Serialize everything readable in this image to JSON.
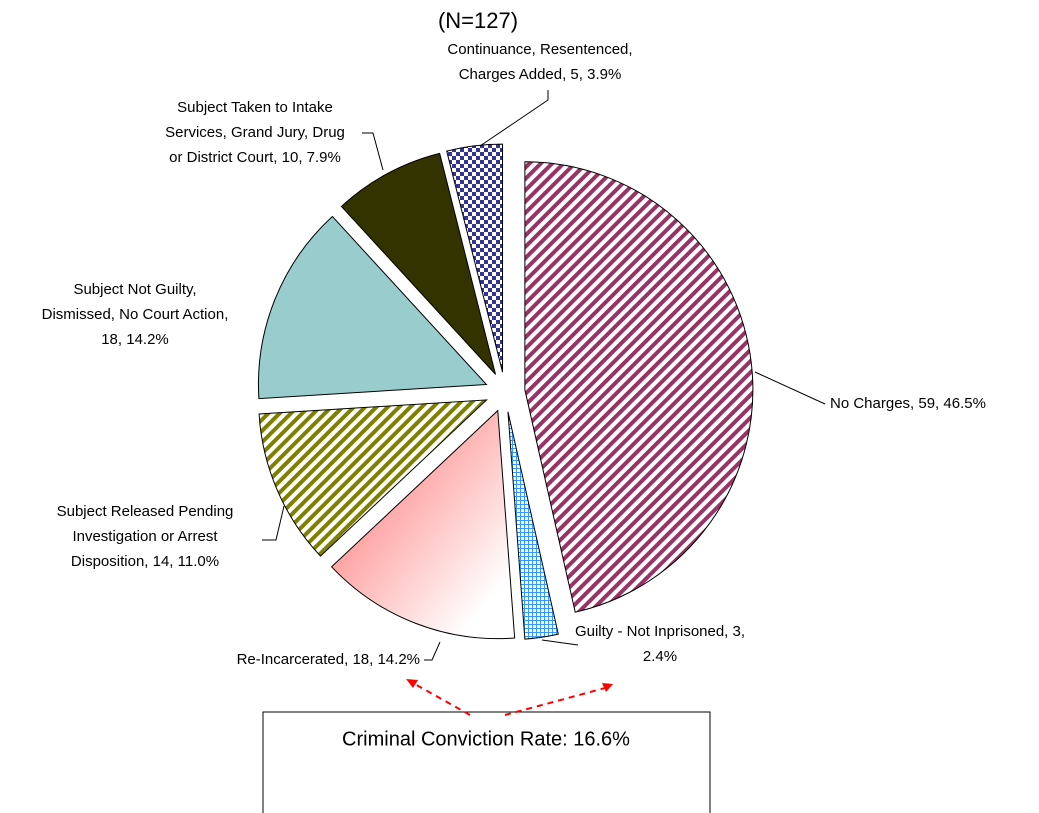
{
  "chart_data": {
    "type": "pie",
    "title": "(N=127)",
    "values": [
      59,
      3,
      18,
      14,
      18,
      10,
      5
    ],
    "value_labels": [
      [
        "No Charges, 59, 46.5%"
      ],
      [
        "Guilty - Not Inprisoned, 3,",
        "2.4%"
      ],
      [
        "Re-Incarcerated, 18, 14.2%"
      ],
      [
        "Subject Released Pending",
        "Investigation or Arrest",
        "Disposition, 14, 11.0%"
      ],
      [
        "Subject Not Guilty,",
        "Dismissed, No Court Action,",
        "18, 14.2%"
      ],
      [
        "Subject Taken to Intake",
        "Services, Grand Jury, Drug",
        "or District Court, 10, 7.9%"
      ],
      [
        "Continuance, Resentenced,",
        "Charges Added, 5, 3.9%"
      ]
    ],
    "colors": [
      "#993366",
      "#3399ff",
      "#ff6666",
      "#808000",
      "#99cccc",
      "#333300",
      "#333399"
    ],
    "annotation": "Criminal Conviction Rate: 16.6%"
  }
}
